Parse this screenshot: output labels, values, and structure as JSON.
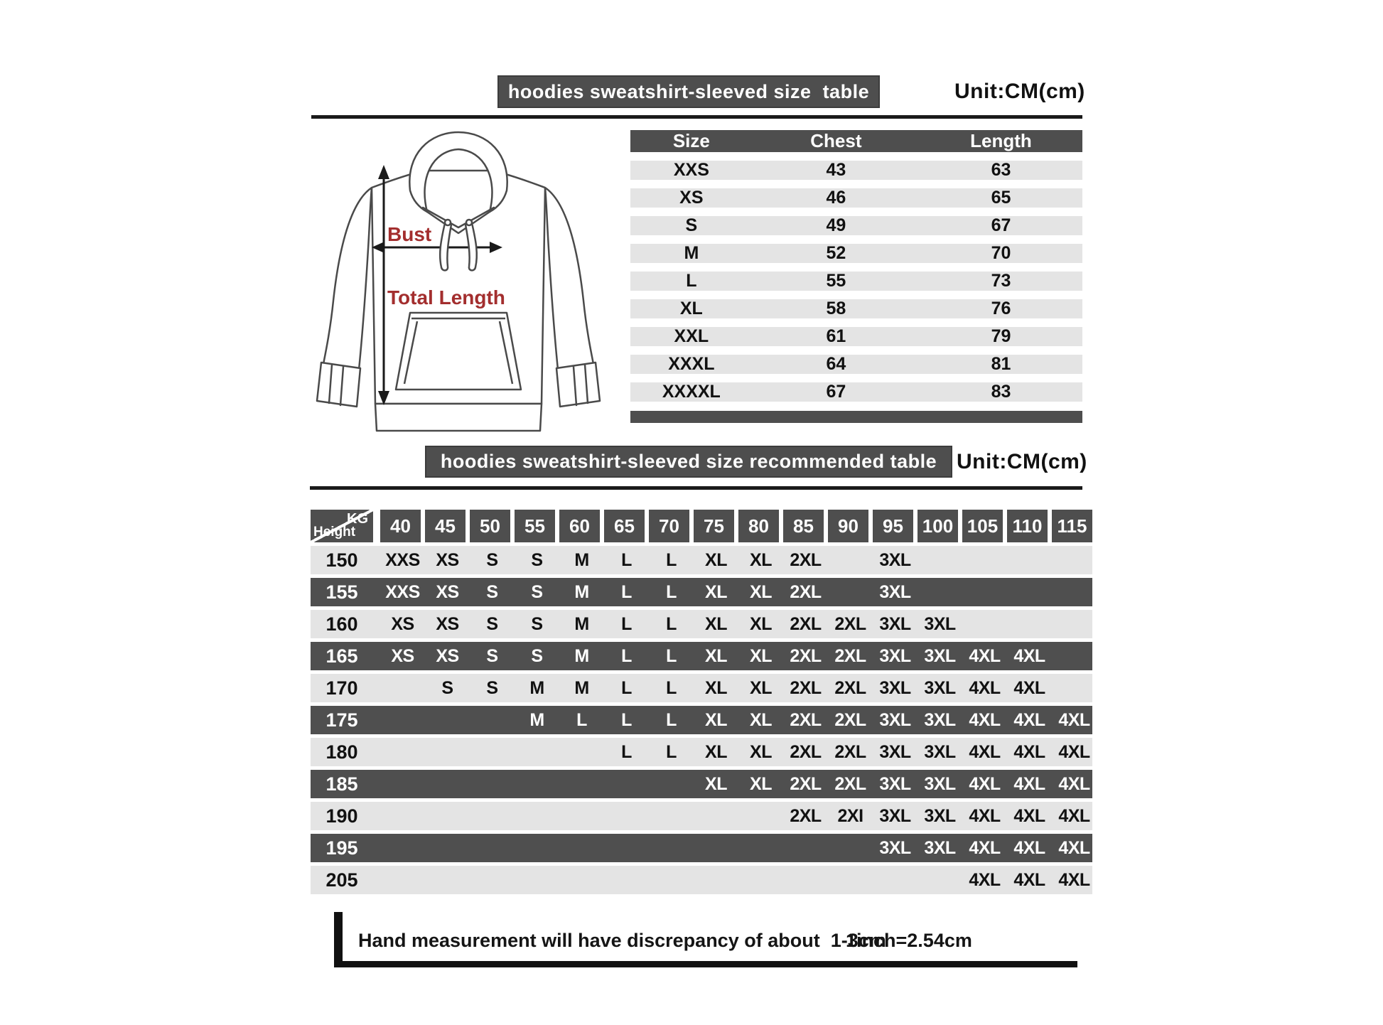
{
  "section1": {
    "title": "hoodies sweatshirt-sleeved size  table",
    "unit": "Unit:CM(cm)"
  },
  "hoodie_diagram": {
    "bust_label": "Bust",
    "total_length_label": "Total Length"
  },
  "size_table": {
    "headers": [
      "Size",
      "Chest",
      "Length"
    ],
    "rows": [
      [
        "XXS",
        "43",
        "63"
      ],
      [
        "XS",
        "46",
        "65"
      ],
      [
        "S",
        "49",
        "67"
      ],
      [
        "M",
        "52",
        "70"
      ],
      [
        "L",
        "55",
        "73"
      ],
      [
        "XL",
        "58",
        "76"
      ],
      [
        "XXL",
        "61",
        "79"
      ],
      [
        "XXXL",
        "64",
        "81"
      ],
      [
        "XXXXL",
        "67",
        "83"
      ]
    ]
  },
  "section2": {
    "title": "hoodies sweatshirt-sleeved size recommended table",
    "unit": "Unit:CM(cm)"
  },
  "recommend_table": {
    "corner_top": "KG",
    "corner_bottom": "Height",
    "weights": [
      "40",
      "45",
      "50",
      "55",
      "60",
      "65",
      "70",
      "75",
      "80",
      "85",
      "90",
      "95",
      "100",
      "105",
      "110",
      "115"
    ],
    "rows": [
      {
        "height": "150",
        "cells": [
          "XXS",
          "XS",
          "S",
          "S",
          "M",
          "L",
          "L",
          "XL",
          "XL",
          "2XL",
          "",
          "3XL",
          "",
          "",
          "",
          ""
        ]
      },
      {
        "height": "155",
        "cells": [
          "XXS",
          "XS",
          "S",
          "S",
          "M",
          "L",
          "L",
          "XL",
          "XL",
          "2XL",
          "",
          "3XL",
          "",
          "",
          "",
          ""
        ]
      },
      {
        "height": "160",
        "cells": [
          "XS",
          "XS",
          "S",
          "S",
          "M",
          "L",
          "L",
          "XL",
          "XL",
          "2XL",
          "2XL",
          "3XL",
          "3XL",
          "",
          "",
          ""
        ]
      },
      {
        "height": "165",
        "cells": [
          "XS",
          "XS",
          "S",
          "S",
          "M",
          "L",
          "L",
          "XL",
          "XL",
          "2XL",
          "2XL",
          "3XL",
          "3XL",
          "4XL",
          "4XL",
          ""
        ]
      },
      {
        "height": "170",
        "cells": [
          "",
          "S",
          "S",
          "M",
          "M",
          "L",
          "L",
          "XL",
          "XL",
          "2XL",
          "2XL",
          "3XL",
          "3XL",
          "4XL",
          "4XL",
          ""
        ]
      },
      {
        "height": "175",
        "cells": [
          "",
          "",
          "",
          "M",
          "L",
          "L",
          "L",
          "XL",
          "XL",
          "2XL",
          "2XL",
          "3XL",
          "3XL",
          "4XL",
          "4XL",
          "4XL"
        ]
      },
      {
        "height": "180",
        "cells": [
          "",
          "",
          "",
          "",
          "",
          "L",
          "L",
          "XL",
          "XL",
          "2XL",
          "2XL",
          "3XL",
          "3XL",
          "4XL",
          "4XL",
          "4XL"
        ]
      },
      {
        "height": "185",
        "cells": [
          "",
          "",
          "",
          "",
          "",
          "",
          "",
          "XL",
          "XL",
          "2XL",
          "2XL",
          "3XL",
          "3XL",
          "4XL",
          "4XL",
          "4XL"
        ]
      },
      {
        "height": "190",
        "cells": [
          "",
          "",
          "",
          "",
          "",
          "",
          "",
          "",
          "",
          "2XL",
          "2XI",
          "3XL",
          "3XL",
          "4XL",
          "4XL",
          "4XL"
        ]
      },
      {
        "height": "195",
        "cells": [
          "",
          "",
          "",
          "",
          "",
          "",
          "",
          "",
          "",
          "",
          "",
          "3XL",
          "3XL",
          "4XL",
          "4XL",
          "4XL"
        ]
      },
      {
        "height": "205",
        "cells": [
          "",
          "",
          "",
          "",
          "",
          "",
          "",
          "",
          "",
          "",
          "",
          "",
          "",
          "4XL",
          "4XL",
          "4XL"
        ]
      }
    ]
  },
  "footnote": {
    "note": "Hand measurement will have discrepancy of about  1-3cm",
    "conversion": "1inch=2.54cm"
  },
  "colors": {
    "bar_dark": "#4e4e4e",
    "row_light": "#e4e4e4",
    "row_dark": "#4f4f4f",
    "annotation_red": "#a32e2e",
    "line_black": "#151515"
  }
}
